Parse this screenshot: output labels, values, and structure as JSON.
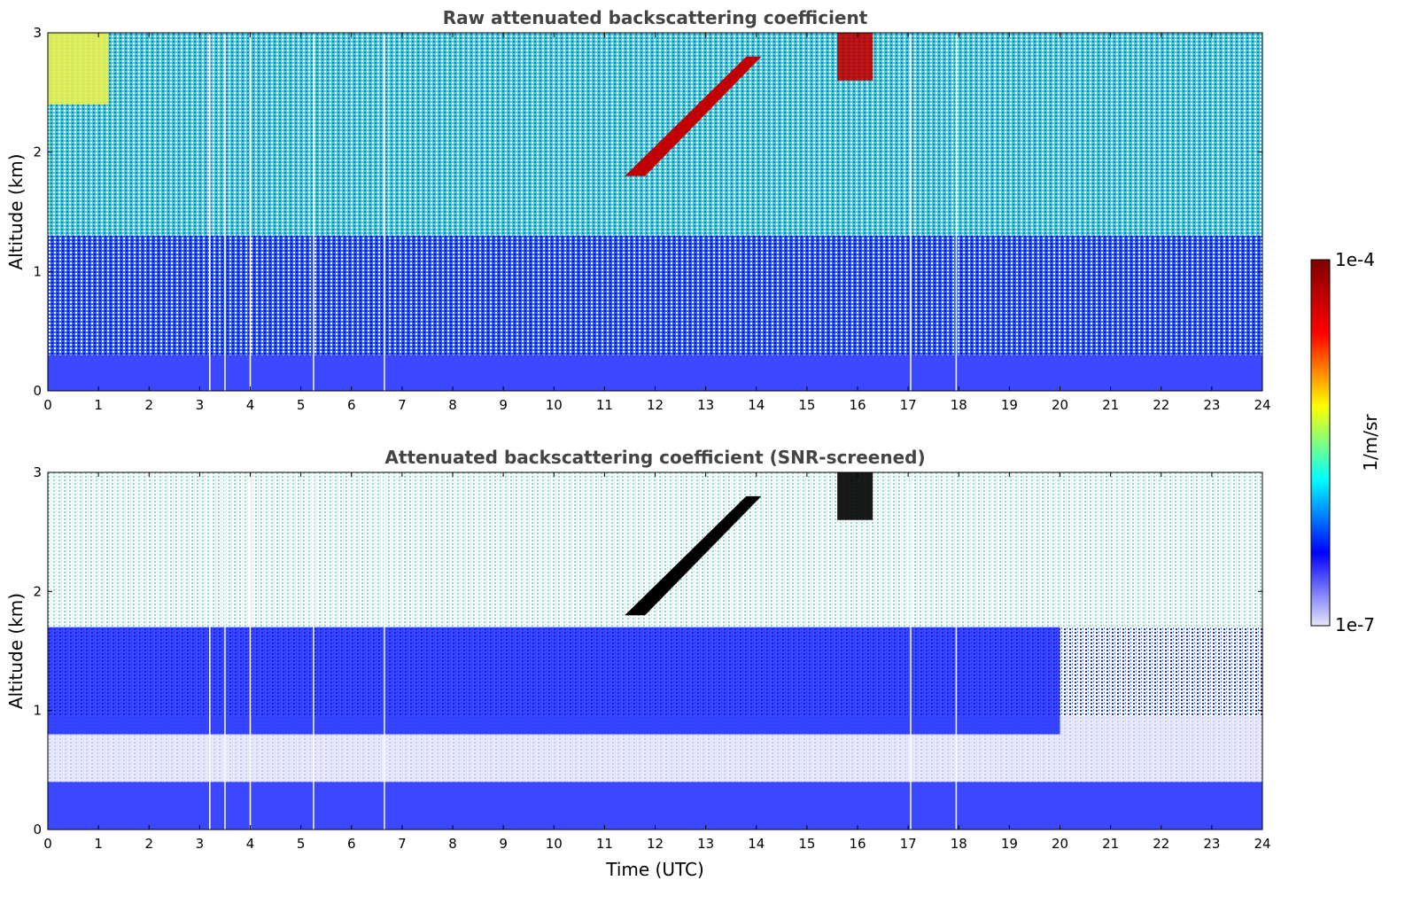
{
  "chart_data": [
    {
      "type": "heatmap",
      "title": "Raw attenuated backscattering coefficient",
      "xlabel": "",
      "ylabel": "Altitude (km)",
      "xlim": [
        0,
        24
      ],
      "ylim": [
        0,
        3
      ],
      "x_ticks": [
        "0",
        "1",
        "2",
        "3",
        "4",
        "5",
        "6",
        "7",
        "8",
        "9",
        "10",
        "11",
        "12",
        "13",
        "14",
        "15",
        "16",
        "17",
        "18",
        "19",
        "20",
        "21",
        "22",
        "23",
        "24"
      ],
      "y_ticks": [
        "0",
        "1",
        "2",
        "3"
      ],
      "data_gaps_utc": [
        3.2,
        3.5,
        4.0,
        5.25,
        6.65,
        17.05,
        17.95
      ],
      "features": [
        {
          "name": "surface layer",
          "x": [
            0,
            24
          ],
          "altitude_km": [
            0,
            0.3
          ],
          "level": "low (blue)"
        },
        {
          "name": "high signal top-left",
          "x": [
            0,
            1.2
          ],
          "altitude_km": [
            2.4,
            3.0
          ],
          "level": "medium (yellow)"
        },
        {
          "name": "cloud streaks",
          "x": [
            11.4,
            14.1
          ],
          "altitude_km": [
            1.8,
            2.8
          ],
          "level": "high (red)"
        },
        {
          "name": "cloud patch",
          "x": [
            15.6,
            16.3
          ],
          "altitude_km": [
            2.6,
            3.0
          ],
          "level": "high (red)"
        }
      ]
    },
    {
      "type": "heatmap",
      "title": "Attenuated backscattering coefficient (SNR-screened)",
      "xlabel": "Time (UTC)",
      "ylabel": "Altitude (km)",
      "xlim": [
        0,
        24
      ],
      "ylim": [
        0,
        3
      ],
      "x_ticks": [
        "0",
        "1",
        "2",
        "3",
        "4",
        "5",
        "6",
        "7",
        "8",
        "9",
        "10",
        "11",
        "12",
        "13",
        "14",
        "15",
        "16",
        "17",
        "18",
        "19",
        "20",
        "21",
        "22",
        "23",
        "24"
      ],
      "y_ticks": [
        "0",
        "1",
        "2",
        "3"
      ],
      "data_gaps_utc": [
        3.2,
        3.5,
        4.0,
        5.25,
        6.65,
        17.05,
        17.95
      ],
      "features": [
        {
          "name": "surface layer",
          "x": [
            0,
            24
          ],
          "altitude_km": [
            0,
            0.4
          ],
          "level": "low (blue)"
        },
        {
          "name": "aerosol band",
          "x": [
            0,
            20
          ],
          "altitude_km": [
            0.8,
            1.7
          ],
          "level": "low (blue)"
        },
        {
          "name": "cloud streaks",
          "x": [
            11.4,
            14.1
          ],
          "altitude_km": [
            1.8,
            2.8
          ],
          "level": "saturated (black)"
        },
        {
          "name": "cloud patch",
          "x": [
            15.6,
            16.3
          ],
          "altitude_km": [
            2.6,
            3.0
          ],
          "level": "saturated (black)"
        }
      ]
    }
  ],
  "colorbar": {
    "label": "1/m/sr",
    "max_label": "1e-4",
    "min_label": "1e-7",
    "colors": [
      "#e6e6fa",
      "#0000ff",
      "#00ffff",
      "#ffff00",
      "#ff0000",
      "#7f0000"
    ]
  }
}
